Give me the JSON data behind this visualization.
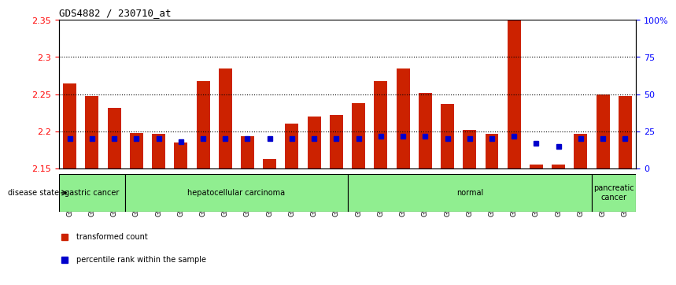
{
  "title": "GDS4882 / 230710_at",
  "samples": [
    "GSM1200291",
    "GSM1200292",
    "GSM1200293",
    "GSM1200294",
    "GSM1200295",
    "GSM1200296",
    "GSM1200297",
    "GSM1200298",
    "GSM1200299",
    "GSM1200300",
    "GSM1200301",
    "GSM1200302",
    "GSM1200303",
    "GSM1200304",
    "GSM1200305",
    "GSM1200306",
    "GSM1200307",
    "GSM1200308",
    "GSM1200309",
    "GSM1200310",
    "GSM1200311",
    "GSM1200312",
    "GSM1200313",
    "GSM1200314",
    "GSM1200315",
    "GSM1200316"
  ],
  "transformed_count": [
    2.265,
    2.248,
    2.232,
    2.198,
    2.197,
    2.185,
    2.268,
    2.285,
    2.193,
    2.163,
    2.21,
    2.22,
    2.222,
    2.238,
    2.268,
    2.285,
    2.252,
    2.237,
    2.202,
    2.197,
    2.35,
    2.155,
    2.155,
    2.197,
    2.25,
    2.248
  ],
  "percentile_rank": [
    20,
    20,
    20,
    20,
    20,
    18,
    20,
    20,
    20,
    20,
    20,
    20,
    20,
    20,
    22,
    22,
    22,
    20,
    20,
    20,
    22,
    17,
    15,
    20,
    20,
    20
  ],
  "ylim_left": [
    2.15,
    2.35
  ],
  "ylim_right": [
    0,
    100
  ],
  "yticks_left": [
    2.15,
    2.2,
    2.25,
    2.3,
    2.35
  ],
  "yticks_right": [
    0,
    25,
    50,
    75,
    100
  ],
  "bar_color": "#CC2200",
  "dot_color": "#0000CC",
  "bg_color": "#FFFFFF",
  "disease_groups": [
    {
      "label": "gastric cancer",
      "start": 0,
      "end": 2,
      "color": "#90EE90"
    },
    {
      "label": "hepatocellular carcinoma",
      "start": 3,
      "end": 12,
      "color": "#90EE90"
    },
    {
      "label": "normal",
      "start": 13,
      "end": 23,
      "color": "#90EE90"
    },
    {
      "label": "pancreatic\ncancer",
      "start": 24,
      "end": 25,
      "color": "#90EE90"
    }
  ],
  "legend_items": [
    {
      "label": "transformed count",
      "color": "#CC2200"
    },
    {
      "label": "percentile rank within the sample",
      "color": "#0000CC"
    }
  ]
}
